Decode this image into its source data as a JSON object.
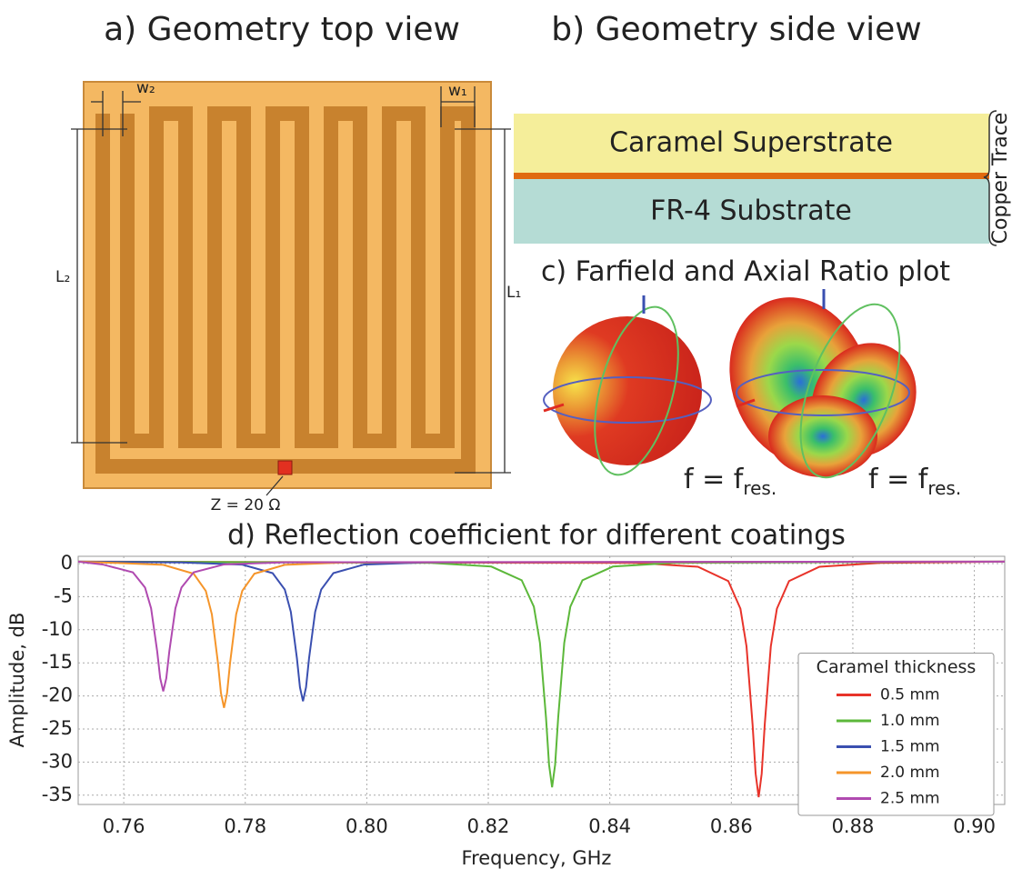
{
  "panel_a": {
    "title": "a) Geometry top view",
    "labels": [
      "w₂",
      "w₁",
      "L₂",
      "L₁",
      "Z = 20 Ω"
    ]
  },
  "panel_b": {
    "title": "b) Geometry side view",
    "layers": [
      "Caramel Superstrate",
      "FR-4 Substrate"
    ],
    "trace_label": "Copper Trace"
  },
  "panel_c": {
    "title": "c) Farfield and Axial Ratio plot",
    "captions": [
      {
        "text": "f = f",
        "subscript": "res."
      },
      {
        "text": "f = f",
        "subscript": "res."
      }
    ]
  },
  "chart_data": {
    "type": "line",
    "title": "d) Reflection coefficient for different coatings",
    "x_label": "Frequency, GHz",
    "y_label": "Amplitude, dB",
    "legend_title": "Caramel thickness",
    "legend": "lower right",
    "grid": true,
    "xlim": [
      0.7525,
      0.905
    ],
    "ylim": [
      -36.4,
      1.1
    ],
    "xticks": [
      0.76,
      0.78,
      {
        "value": 0.8,
        "label": "0.80"
      },
      0.82,
      0.84,
      0.86,
      0.88,
      {
        "value": 0.9,
        "label": "0.90"
      }
    ],
    "yticks": [
      0,
      -5,
      -10,
      -15,
      -20,
      -25,
      -30,
      -35
    ],
    "series": [
      {
        "name": "0.5 mm",
        "color": "#e8332a",
        "x": [
          0.7525,
          0.8445,
          0.8545,
          0.8595,
          0.8615,
          0.8625,
          0.8635,
          0.864,
          0.8645,
          0.865,
          0.8655,
          0.8665,
          0.8675,
          0.8695,
          0.8745,
          0.8845,
          0.905
        ],
        "values": [
          0.3,
          0.1,
          -0.48,
          -2.64,
          -6.82,
          -12.52,
          -24.34,
          -31.74,
          -35.3,
          -31.74,
          -24.34,
          -12.52,
          -6.82,
          -2.64,
          -0.48,
          0.1,
          0.3
        ]
      },
      {
        "name": "1.0 mm",
        "color": "#5cb83a",
        "x": [
          0.7525,
          0.8105,
          0.8205,
          0.8255,
          0.8275,
          0.8285,
          0.8295,
          0.83,
          0.8305,
          0.831,
          0.8315,
          0.8325,
          0.8335,
          0.8355,
          0.8405,
          0.8505,
          0.905
        ],
        "values": [
          0.3,
          0.11,
          -0.45,
          -2.52,
          -6.52,
          -11.98,
          -23.3,
          -30.39,
          -33.8,
          -30.39,
          -23.3,
          -11.98,
          -6.52,
          -2.52,
          -0.45,
          0.11,
          0.3
        ]
      },
      {
        "name": "1.5 mm",
        "color": "#3a4fb0",
        "x": [
          0.7525,
          0.7695,
          0.7795,
          0.7845,
          0.7865,
          0.7875,
          0.7885,
          0.789,
          0.7895,
          0.79,
          0.7905,
          0.7915,
          0.7925,
          0.7945,
          0.7995,
          0.8095,
          0.905
        ],
        "values": [
          0.3,
          0.18,
          -0.16,
          -1.44,
          -3.92,
          -7.3,
          -14.3,
          -18.69,
          -20.8,
          -18.69,
          -14.3,
          -7.3,
          -3.92,
          -1.44,
          -0.16,
          0.18,
          0.3
        ]
      },
      {
        "name": "2.0 mm",
        "color": "#f5952a",
        "x": [
          0.7525,
          0.7565,
          0.7665,
          0.7715,
          0.7735,
          0.7745,
          0.7755,
          0.776,
          0.7765,
          0.777,
          0.7775,
          0.7785,
          0.7795,
          0.7815,
          0.7865,
          0.7965,
          0.905
        ],
        "values": [
          0.3,
          0.18,
          -0.19,
          -1.53,
          -4.12,
          -7.66,
          -14.99,
          -19.59,
          -21.8,
          -19.59,
          -14.99,
          -7.66,
          -4.12,
          -1.53,
          -0.19,
          0.18,
          0.3
        ]
      },
      {
        "name": "2.5 mm",
        "color": "#b04ab0",
        "x": [
          0.7525,
          0.7565,
          0.7615,
          0.7635,
          0.7645,
          0.7655,
          0.766,
          0.7665,
          0.767,
          0.7675,
          0.7685,
          0.7695,
          0.7715,
          0.7765,
          0.7865,
          0.905
        ],
        "values": [
          0.3,
          -0.13,
          -1.32,
          -3.62,
          -6.76,
          -13.26,
          -17.34,
          -19.3,
          -17.34,
          -13.26,
          -6.76,
          -3.62,
          -1.32,
          -0.13,
          0.19,
          0.3
        ]
      }
    ]
  }
}
